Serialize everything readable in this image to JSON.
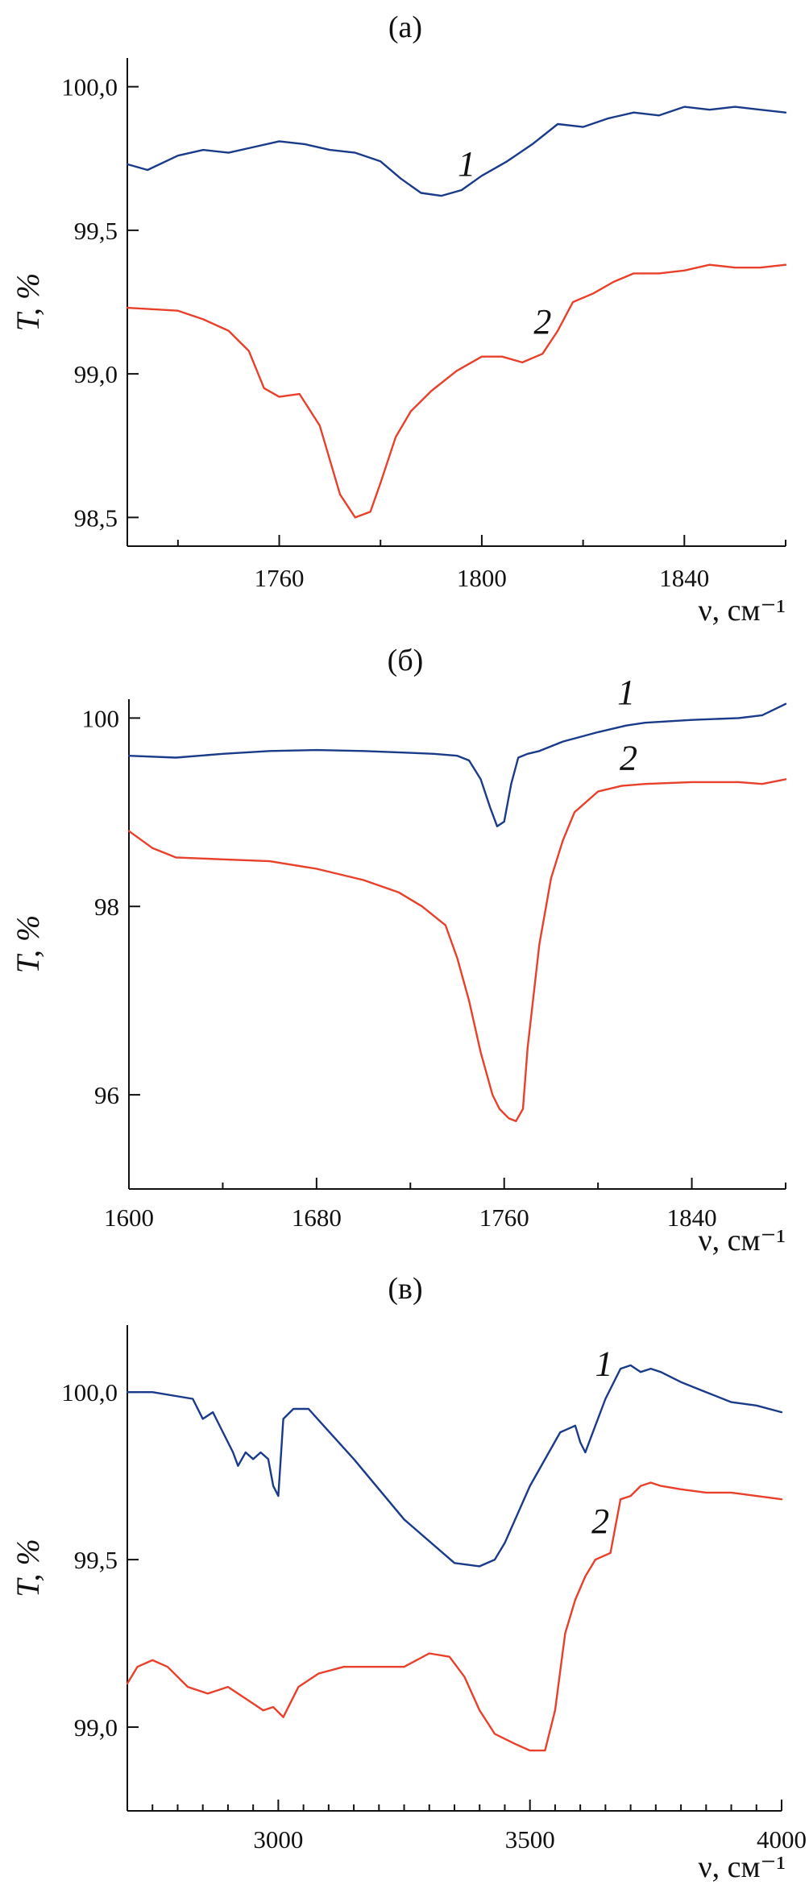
{
  "colors": {
    "series1": "#1a3a8a",
    "series2": "#e8402a",
    "axis": "#111111"
  },
  "chart_data": [
    {
      "type": "line",
      "title": "(а)",
      "xlabel": "ν, см⁻¹",
      "ylabel": "T, %",
      "xlim": [
        1730,
        1860
      ],
      "ylim": [
        98.4,
        100.1
      ],
      "xticks": [
        1760,
        1800,
        1840
      ],
      "xtick_labels": [
        "1760",
        "1800",
        "1840"
      ],
      "xminor": [
        1740,
        1780,
        1820,
        1860
      ],
      "yticks": [
        98.5,
        99.0,
        99.5,
        100.0
      ],
      "ytick_labels": [
        "98,5",
        "99,0",
        "99,5",
        "100,0"
      ],
      "series": [
        {
          "name": "1",
          "label_at": [
            1797,
            99.69
          ],
          "x": [
            1730,
            1734,
            1740,
            1745,
            1750,
            1755,
            1760,
            1765,
            1770,
            1775,
            1780,
            1784,
            1788,
            1792,
            1796,
            1800,
            1805,
            1810,
            1815,
            1820,
            1825,
            1830,
            1835,
            1840,
            1845,
            1850,
            1855,
            1860
          ],
          "y": [
            99.73,
            99.71,
            99.76,
            99.78,
            99.77,
            99.79,
            99.81,
            99.8,
            99.78,
            99.77,
            99.74,
            99.68,
            99.63,
            99.62,
            99.64,
            99.69,
            99.74,
            99.8,
            99.87,
            99.86,
            99.89,
            99.91,
            99.9,
            99.93,
            99.92,
            99.93,
            99.92,
            99.91
          ]
        },
        {
          "name": "2",
          "label_at": [
            1812,
            99.14
          ],
          "x": [
            1730,
            1740,
            1745,
            1750,
            1754,
            1757,
            1760,
            1764,
            1768,
            1772,
            1775,
            1778,
            1780,
            1783,
            1786,
            1790,
            1795,
            1800,
            1804,
            1808,
            1812,
            1815,
            1818,
            1822,
            1826,
            1830,
            1835,
            1840,
            1845,
            1850,
            1855,
            1860
          ],
          "y": [
            99.23,
            99.22,
            99.19,
            99.15,
            99.08,
            98.95,
            98.92,
            98.93,
            98.82,
            98.58,
            98.5,
            98.52,
            98.62,
            98.78,
            98.87,
            98.94,
            99.01,
            99.06,
            99.06,
            99.04,
            99.07,
            99.15,
            99.25,
            99.28,
            99.32,
            99.35,
            99.35,
            99.36,
            99.38,
            99.37,
            99.37,
            99.38
          ]
        }
      ]
    },
    {
      "type": "line",
      "title": "(б)",
      "xlabel": "ν, см⁻¹",
      "ylabel": "T, %",
      "xlim": [
        1600,
        1880
      ],
      "ylim": [
        95.0,
        100.2
      ],
      "xticks": [
        1600,
        1680,
        1760,
        1840
      ],
      "xtick_labels": [
        "1600",
        "1680",
        "1760",
        "1840"
      ],
      "xminor": [
        1640,
        1720,
        1800,
        1880
      ],
      "yticks": [
        96,
        98,
        100
      ],
      "ytick_labels": [
        "96",
        "98",
        "100"
      ],
      "series": [
        {
          "name": "1",
          "label_at": [
            1812,
            100.15
          ],
          "x": [
            1600,
            1620,
            1640,
            1660,
            1680,
            1700,
            1720,
            1730,
            1740,
            1745,
            1750,
            1754,
            1757,
            1760,
            1763,
            1766,
            1770,
            1775,
            1785,
            1800,
            1812,
            1820,
            1840,
            1860,
            1870,
            1880
          ],
          "y": [
            99.6,
            99.58,
            99.62,
            99.65,
            99.66,
            99.65,
            99.63,
            99.62,
            99.6,
            99.55,
            99.35,
            99.05,
            98.85,
            98.9,
            99.3,
            99.58,
            99.62,
            99.65,
            99.75,
            99.85,
            99.92,
            99.95,
            99.98,
            100.0,
            100.03,
            100.15
          ]
        },
        {
          "name": "2",
          "label_at": [
            1813,
            99.45
          ],
          "x": [
            1600,
            1610,
            1620,
            1640,
            1660,
            1680,
            1700,
            1715,
            1725,
            1735,
            1740,
            1745,
            1750,
            1755,
            1758,
            1762,
            1765,
            1768,
            1770,
            1775,
            1780,
            1785,
            1790,
            1800,
            1810,
            1820,
            1840,
            1860,
            1870,
            1880
          ],
          "y": [
            98.8,
            98.62,
            98.52,
            98.5,
            98.48,
            98.4,
            98.28,
            98.15,
            98.0,
            97.8,
            97.45,
            97.0,
            96.45,
            96.0,
            95.85,
            95.75,
            95.72,
            95.85,
            96.5,
            97.6,
            98.3,
            98.7,
            99.0,
            99.22,
            99.28,
            99.3,
            99.32,
            99.32,
            99.3,
            99.35
          ]
        }
      ]
    },
    {
      "type": "line",
      "title": "(в)",
      "xlabel": "ν, см⁻¹",
      "ylabel": "T, %",
      "xlim": [
        2700,
        4000
      ],
      "ylim": [
        98.75,
        100.2
      ],
      "xticks": [
        3000,
        3500,
        4000
      ],
      "xtick_labels": [
        "3000",
        "3500",
        "4000"
      ],
      "xminor": [
        2750,
        2800,
        2850,
        2900,
        2950,
        3050,
        3100,
        3150,
        3200,
        3250,
        3300,
        3350,
        3400,
        3450,
        3550,
        3600,
        3650,
        3700,
        3750,
        3800,
        3850,
        3900,
        3950
      ],
      "yticks": [
        99.0,
        99.5,
        100.0
      ],
      "ytick_labels": [
        "99,0",
        "99,5",
        "100,0"
      ],
      "series": [
        {
          "name": "1",
          "label_at": [
            3647,
            100.05
          ],
          "x": [
            2700,
            2750,
            2830,
            2850,
            2870,
            2890,
            2910,
            2920,
            2935,
            2950,
            2965,
            2980,
            2990,
            3000,
            3010,
            3030,
            3060,
            3090,
            3150,
            3250,
            3350,
            3400,
            3430,
            3450,
            3500,
            3560,
            3590,
            3600,
            3610,
            3620,
            3650,
            3680,
            3700,
            3720,
            3740,
            3760,
            3800,
            3850,
            3900,
            3950,
            4000
          ],
          "y": [
            100.0,
            100.0,
            99.98,
            99.92,
            99.94,
            99.88,
            99.82,
            99.78,
            99.82,
            99.8,
            99.82,
            99.8,
            99.72,
            99.69,
            99.92,
            99.95,
            99.95,
            99.9,
            99.8,
            99.62,
            99.49,
            99.48,
            99.5,
            99.55,
            99.72,
            99.88,
            99.9,
            99.85,
            99.82,
            99.86,
            99.98,
            100.07,
            100.08,
            100.06,
            100.07,
            100.06,
            100.03,
            100.0,
            99.97,
            99.96,
            99.94
          ]
        },
        {
          "name": "2",
          "label_at": [
            3640,
            99.58
          ],
          "x": [
            2700,
            2720,
            2750,
            2780,
            2820,
            2860,
            2900,
            2920,
            2950,
            2970,
            2990,
            3010,
            3040,
            3080,
            3130,
            3200,
            3250,
            3300,
            3340,
            3370,
            3400,
            3430,
            3470,
            3500,
            3530,
            3550,
            3570,
            3590,
            3610,
            3630,
            3660,
            3680,
            3700,
            3720,
            3740,
            3760,
            3800,
            3850,
            3900,
            3950,
            4000
          ],
          "y": [
            99.13,
            99.18,
            99.2,
            99.18,
            99.12,
            99.1,
            99.12,
            99.1,
            99.07,
            99.05,
            99.06,
            99.03,
            99.12,
            99.16,
            99.18,
            99.18,
            99.18,
            99.22,
            99.21,
            99.15,
            99.05,
            98.98,
            98.95,
            98.93,
            98.93,
            99.05,
            99.28,
            99.38,
            99.45,
            99.5,
            99.52,
            99.68,
            99.69,
            99.72,
            99.73,
            99.72,
            99.71,
            99.7,
            99.7,
            99.69,
            99.68
          ]
        }
      ]
    }
  ]
}
